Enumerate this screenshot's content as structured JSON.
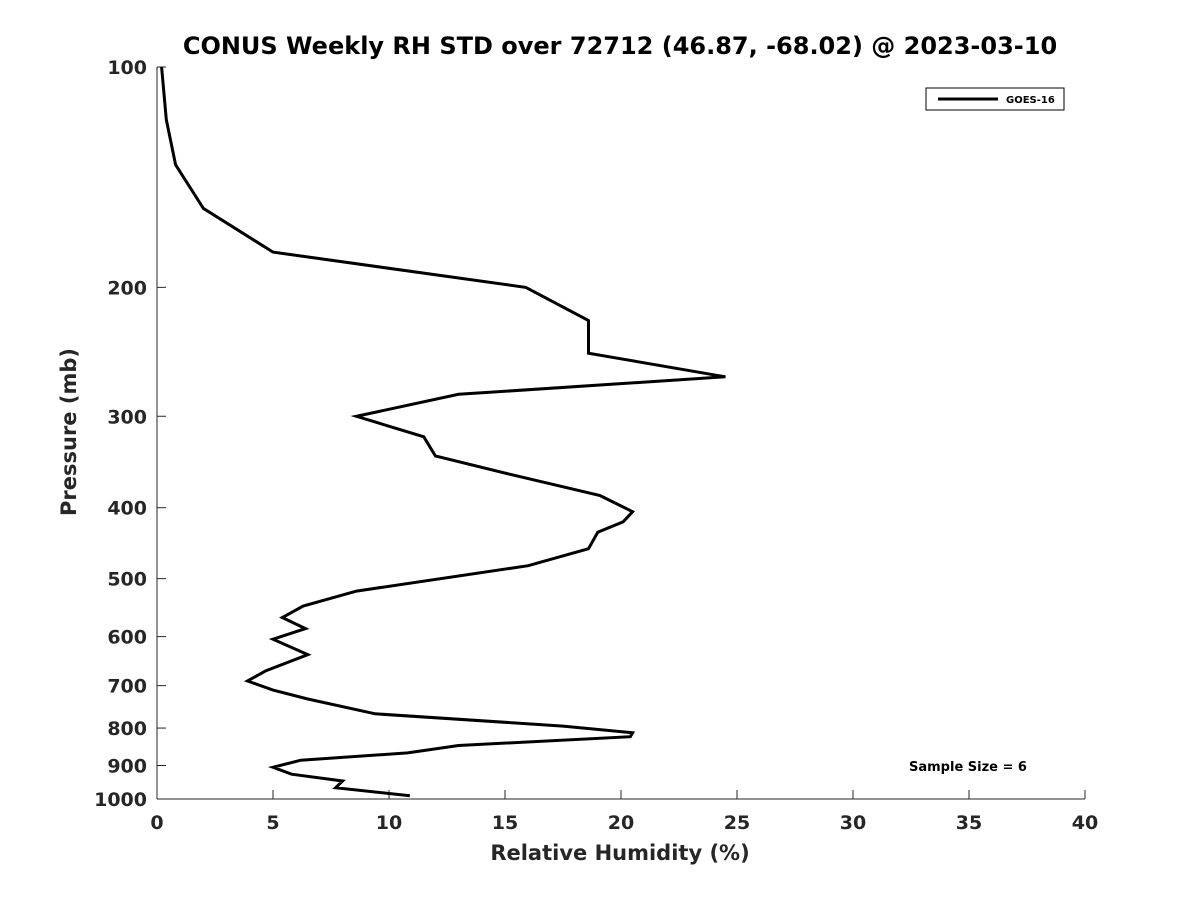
{
  "chart_data": {
    "type": "line",
    "title": "CONUS Weekly RH STD over 72712 (46.87, -68.02) @ 2023-03-10",
    "xlabel": "Relative Humidity (%)",
    "ylabel": "Pressure (mb)",
    "xlim": [
      0,
      40
    ],
    "ylim": [
      1000,
      100
    ],
    "y_scale": "log",
    "y_reversed": true,
    "x_ticks": [
      0,
      5,
      10,
      15,
      20,
      25,
      30,
      35,
      40
    ],
    "y_ticks": [
      100,
      200,
      300,
      400,
      500,
      600,
      700,
      800,
      900,
      1000
    ],
    "grid": false,
    "legend_position": "top-right",
    "series": [
      {
        "name": "GOES-16",
        "color": "#000000",
        "x": [
          0.2,
          0.4,
          0.8,
          2.0,
          5.0,
          15.9,
          18.6,
          18.6,
          24.5,
          13.0,
          8.6,
          11.5,
          12.0,
          15.2,
          19.1,
          20.5,
          20.1,
          19.0,
          18.6,
          16.0,
          8.6,
          6.3,
          5.4,
          6.4,
          5.0,
          6.5,
          4.7,
          3.9,
          5.0,
          6.5,
          9.4,
          17.5,
          20.5,
          20.4,
          13.0,
          10.8,
          6.2,
          5.0,
          5.8,
          8.0,
          7.7,
          10.9
        ],
        "y": [
          100,
          118,
          136,
          156,
          179,
          200,
          222,
          246,
          265,
          280,
          300,
          320,
          340,
          360,
          385,
          405,
          418,
          432,
          455,
          480,
          520,
          545,
          565,
          585,
          605,
          635,
          668,
          690,
          710,
          730,
          765,
          795,
          812,
          822,
          845,
          865,
          885,
          905,
          925,
          945,
          965,
          990
        ]
      }
    ],
    "annotations": [
      "Sample Size = 6"
    ]
  }
}
